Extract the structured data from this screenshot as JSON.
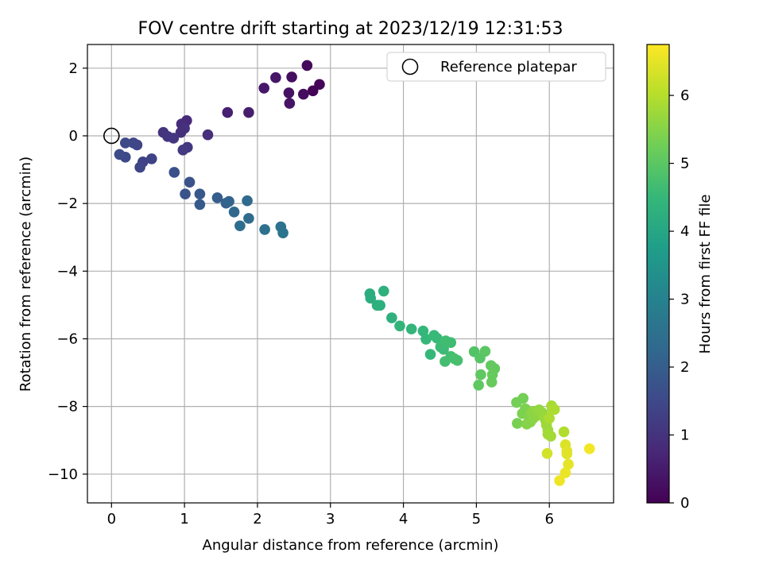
{
  "chart_data": {
    "type": "scatter",
    "title": "FOV centre drift starting at 2023/12/19 12:31:53",
    "xlabel": "Angular distance from reference (arcmin)",
    "ylabel": "Rotation from reference (arcmin)",
    "xlim": [
      -0.33,
      6.88
    ],
    "ylim": [
      -10.85,
      2.7
    ],
    "xticks": [
      0,
      1,
      2,
      3,
      4,
      5,
      6
    ],
    "yticks": [
      2,
      0,
      -2,
      -4,
      -6,
      -8,
      -10
    ],
    "grid": true,
    "legend": {
      "placement": "top-right",
      "entries": [
        "Reference platepar"
      ]
    },
    "reference_point": {
      "x": 0,
      "y": 0
    },
    "colorbar": {
      "label": "Hours from first FF file",
      "colormap": "viridis",
      "range": [
        0,
        6.75
      ],
      "ticks": [
        0,
        1,
        2,
        3,
        4,
        5,
        6
      ]
    },
    "colors": {
      "viridis": [
        "#440154",
        "#482878",
        "#3e4989",
        "#31688e",
        "#26828e",
        "#1f9e89",
        "#35b779",
        "#6ece58",
        "#b5de2b",
        "#fde725"
      ]
    },
    "series": [
      {
        "points": [
          [
            2.68,
            2.08,
            0.15
          ],
          [
            2.85,
            1.52,
            0.1
          ],
          [
            2.76,
            1.33,
            0.05
          ],
          [
            2.63,
            1.23,
            0.2
          ],
          [
            2.47,
            1.74,
            0.25
          ],
          [
            2.43,
            1.27,
            0.3
          ],
          [
            2.44,
            0.96,
            0.35
          ],
          [
            2.25,
            1.72,
            0.4
          ],
          [
            2.09,
            1.41,
            0.45
          ],
          [
            1.88,
            0.69,
            0.55
          ],
          [
            1.59,
            0.69,
            0.6
          ],
          [
            1.32,
            0.03,
            0.9
          ],
          [
            1.03,
            0.45,
            0.8
          ],
          [
            0.96,
            0.35,
            0.85
          ],
          [
            1.0,
            0.22,
            0.95
          ],
          [
            0.95,
            0.1,
            0.9
          ],
          [
            0.71,
            0.1,
            1.0
          ],
          [
            0.77,
            -0.02,
            1.05
          ],
          [
            0.85,
            -0.07,
            1.1
          ],
          [
            1.04,
            -0.34,
            1.1
          ],
          [
            0.98,
            -0.42,
            1.15
          ],
          [
            0.55,
            -0.68,
            1.35
          ],
          [
            0.43,
            -0.77,
            1.35
          ],
          [
            0.39,
            -0.93,
            1.4
          ],
          [
            0.35,
            -0.27,
            1.4
          ],
          [
            0.3,
            -0.21,
            1.45
          ],
          [
            0.19,
            -0.21,
            1.5
          ],
          [
            0.19,
            -0.63,
            1.5
          ],
          [
            0.11,
            -0.55,
            1.55
          ],
          [
            0.86,
            -1.08,
            1.65
          ],
          [
            1.07,
            -1.37,
            1.75
          ],
          [
            1.01,
            -1.72,
            1.75
          ],
          [
            1.21,
            -1.72,
            1.85
          ],
          [
            1.21,
            -2.03,
            1.9
          ],
          [
            1.45,
            -1.83,
            2.0
          ],
          [
            1.57,
            -1.99,
            2.1
          ],
          [
            1.61,
            -1.94,
            2.15
          ],
          [
            1.68,
            -2.25,
            2.25
          ],
          [
            1.86,
            -1.92,
            2.3
          ],
          [
            1.88,
            -2.44,
            2.35
          ],
          [
            1.76,
            -2.66,
            2.4
          ],
          [
            2.1,
            -2.77,
            2.5
          ],
          [
            2.32,
            -2.69,
            2.55
          ],
          [
            2.35,
            -2.87,
            2.6
          ],
          [
            3.54,
            -4.67,
            4.2
          ],
          [
            3.55,
            -4.8,
            4.2
          ],
          [
            3.64,
            -5.01,
            4.25
          ],
          [
            3.68,
            -5.01,
            4.25
          ],
          [
            3.73,
            -4.59,
            4.3
          ],
          [
            3.84,
            -5.38,
            4.3
          ],
          [
            3.95,
            -5.62,
            4.4
          ],
          [
            4.11,
            -5.71,
            4.4
          ],
          [
            4.27,
            -5.77,
            4.45
          ],
          [
            4.31,
            -6.01,
            4.5
          ],
          [
            4.37,
            -6.46,
            4.5
          ],
          [
            4.42,
            -5.9,
            4.55
          ],
          [
            4.46,
            -5.98,
            4.55
          ],
          [
            4.51,
            -6.24,
            4.6
          ],
          [
            4.55,
            -6.31,
            4.6
          ],
          [
            4.58,
            -6.06,
            4.65
          ],
          [
            4.65,
            -6.11,
            4.65
          ],
          [
            4.57,
            -6.67,
            4.7
          ],
          [
            4.65,
            -6.52,
            4.7
          ],
          [
            4.7,
            -6.59,
            4.75
          ],
          [
            4.74,
            -6.64,
            4.75
          ],
          [
            4.97,
            -6.38,
            4.9
          ],
          [
            5.05,
            -6.57,
            4.95
          ],
          [
            5.12,
            -6.37,
            5.0
          ],
          [
            5.06,
            -7.06,
            5.05
          ],
          [
            5.03,
            -7.37,
            5.05
          ],
          [
            5.2,
            -6.79,
            5.1
          ],
          [
            5.25,
            -6.88,
            5.1
          ],
          [
            5.22,
            -7.06,
            5.15
          ],
          [
            5.21,
            -7.28,
            5.15
          ],
          [
            5.55,
            -7.88,
            5.3
          ],
          [
            5.64,
            -7.76,
            5.3
          ],
          [
            5.56,
            -8.5,
            5.35
          ],
          [
            5.63,
            -8.21,
            5.4
          ],
          [
            5.67,
            -8.07,
            5.4
          ],
          [
            5.72,
            -8.29,
            5.45
          ],
          [
            5.69,
            -8.52,
            5.5
          ],
          [
            5.74,
            -8.46,
            5.5
          ],
          [
            5.76,
            -8.17,
            5.55
          ],
          [
            5.78,
            -8.35,
            5.55
          ],
          [
            5.8,
            -8.14,
            5.6
          ],
          [
            5.83,
            -8.27,
            5.6
          ],
          [
            5.86,
            -8.1,
            5.65
          ],
          [
            5.9,
            -8.18,
            5.65
          ],
          [
            5.93,
            -8.31,
            5.7
          ],
          [
            5.95,
            -8.42,
            5.7
          ],
          [
            5.96,
            -8.55,
            5.75
          ],
          [
            5.98,
            -8.7,
            5.75
          ],
          [
            5.98,
            -8.82,
            5.8
          ],
          [
            6.02,
            -8.88,
            5.8
          ],
          [
            6.04,
            -8.09,
            5.85
          ],
          [
            6.03,
            -7.98,
            5.85
          ],
          [
            6.07,
            -8.09,
            5.9
          ],
          [
            6.0,
            -8.35,
            5.9
          ],
          [
            6.2,
            -8.75,
            5.95
          ],
          [
            5.97,
            -9.39,
            6.3
          ],
          [
            6.22,
            -9.13,
            6.4
          ],
          [
            6.24,
            -9.32,
            6.45
          ],
          [
            6.24,
            -9.4,
            6.45
          ],
          [
            6.26,
            -9.71,
            6.5
          ],
          [
            6.22,
            -9.96,
            6.55
          ],
          [
            6.14,
            -10.19,
            6.6
          ],
          [
            6.55,
            -9.25,
            6.65
          ]
        ]
      }
    ]
  }
}
